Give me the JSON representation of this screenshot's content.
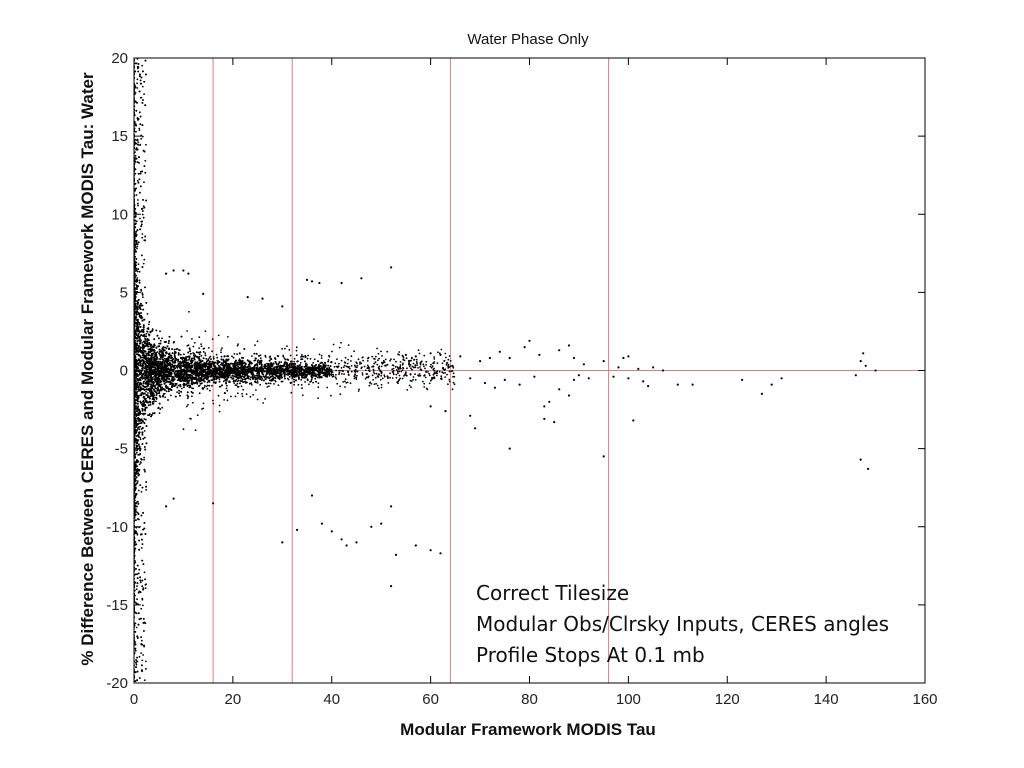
{
  "chart_data": {
    "type": "scatter",
    "title": "Water Phase Only",
    "xlabel": "Modular Framework MODIS Tau",
    "ylabel": "% Difference Between CERES and Modular Framework MODIS Tau: Water",
    "xlim": [
      0,
      160
    ],
    "ylim": [
      -20,
      20
    ],
    "x_ticks": [
      0,
      20,
      40,
      60,
      80,
      100,
      120,
      140,
      160
    ],
    "y_ticks": [
      -20,
      -15,
      -10,
      -5,
      0,
      5,
      10,
      15,
      20
    ],
    "grid": false,
    "reference_lines": {
      "color": "#d98080",
      "vertical_x": [
        16,
        32,
        64,
        96
      ],
      "horizontal_y": [
        0
      ]
    },
    "marker_color": "#000000",
    "annotation_lines": [
      "Correct Tilesize",
      "Modular Obs/Clrsky Inputs, CERES angles",
      "Profile Stops At 0.1 mb"
    ],
    "series": [
      {
        "points": [
          [
            35.0,
            5.8
          ],
          [
            36.0,
            5.7
          ],
          [
            37.5,
            5.6
          ],
          [
            42.0,
            5.6
          ],
          [
            46.0,
            5.9
          ],
          [
            52.0,
            6.6
          ],
          [
            6.5,
            6.2
          ],
          [
            8.0,
            6.4
          ],
          [
            10.0,
            6.4
          ],
          [
            11.0,
            6.2
          ],
          [
            14.0,
            4.9
          ],
          [
            23.0,
            4.7
          ],
          [
            26.0,
            4.6
          ],
          [
            30.0,
            4.1
          ],
          [
            55.0,
            1.0
          ],
          [
            57.0,
            0.9
          ],
          [
            60.0,
            1.1
          ],
          [
            62.0,
            1.0
          ],
          [
            66.0,
            0.9
          ],
          [
            70.0,
            0.6
          ],
          [
            72.0,
            0.8
          ],
          [
            74.0,
            1.2
          ],
          [
            76.0,
            0.8
          ],
          [
            79.0,
            1.5
          ],
          [
            80.0,
            1.9
          ],
          [
            82.0,
            1.0
          ],
          [
            86.0,
            1.3
          ],
          [
            88.0,
            1.6
          ],
          [
            89.0,
            0.8
          ],
          [
            91.0,
            0.4
          ],
          [
            95.0,
            0.6
          ],
          [
            98.0,
            0.2
          ],
          [
            99.0,
            0.8
          ],
          [
            100.0,
            0.9
          ],
          [
            102.0,
            0.1
          ],
          [
            105.0,
            0.2
          ],
          [
            107.0,
            0.0
          ],
          [
            147.0,
            0.6
          ],
          [
            147.5,
            1.1
          ],
          [
            148.0,
            0.3
          ],
          [
            150.0,
            0.0
          ],
          [
            68.0,
            -0.5
          ],
          [
            71.0,
            -0.8
          ],
          [
            73.0,
            -1.1
          ],
          [
            75.0,
            -0.6
          ],
          [
            78.0,
            -0.9
          ],
          [
            81.0,
            -0.4
          ],
          [
            83.0,
            -2.3
          ],
          [
            84.0,
            -2.0
          ],
          [
            86.0,
            -1.2
          ],
          [
            88.0,
            -1.6
          ],
          [
            89.0,
            -0.6
          ],
          [
            90.0,
            -0.3
          ],
          [
            92.0,
            -0.5
          ],
          [
            97.0,
            -0.4
          ],
          [
            100.0,
            -0.5
          ],
          [
            103.0,
            -0.7
          ],
          [
            104.0,
            -1.0
          ],
          [
            110.0,
            -0.9
          ],
          [
            113.0,
            -0.9
          ],
          [
            123.0,
            -0.6
          ],
          [
            127.0,
            -1.5
          ],
          [
            129.0,
            -0.9
          ],
          [
            131.0,
            -0.5
          ],
          [
            146.0,
            -0.3
          ],
          [
            60.0,
            -2.3
          ],
          [
            63.0,
            -2.6
          ],
          [
            68.0,
            -2.9
          ],
          [
            69.0,
            -3.7
          ],
          [
            76.0,
            -5.0
          ],
          [
            83.0,
            -3.1
          ],
          [
            85.0,
            -3.3
          ],
          [
            95.0,
            -5.5
          ],
          [
            101.0,
            -3.2
          ],
          [
            147.0,
            -5.7
          ],
          [
            148.5,
            -6.3
          ],
          [
            16.0,
            -8.5
          ],
          [
            30.0,
            -11.0
          ],
          [
            33.0,
            -10.2
          ],
          [
            36.0,
            -8.0
          ],
          [
            38.0,
            -9.8
          ],
          [
            40.0,
            -10.3
          ],
          [
            42.0,
            -10.8
          ],
          [
            43.0,
            -11.2
          ],
          [
            45.0,
            -11.0
          ],
          [
            48.0,
            -10.0
          ],
          [
            50.0,
            -9.8
          ],
          [
            52.0,
            -8.7
          ],
          [
            53.0,
            -11.8
          ],
          [
            57.0,
            -11.2
          ],
          [
            60.0,
            -11.5
          ],
          [
            62.0,
            -11.7
          ],
          [
            52.0,
            -13.8
          ],
          [
            6.5,
            -8.7
          ],
          [
            8.0,
            -8.2
          ]
        ]
      }
    ]
  }
}
